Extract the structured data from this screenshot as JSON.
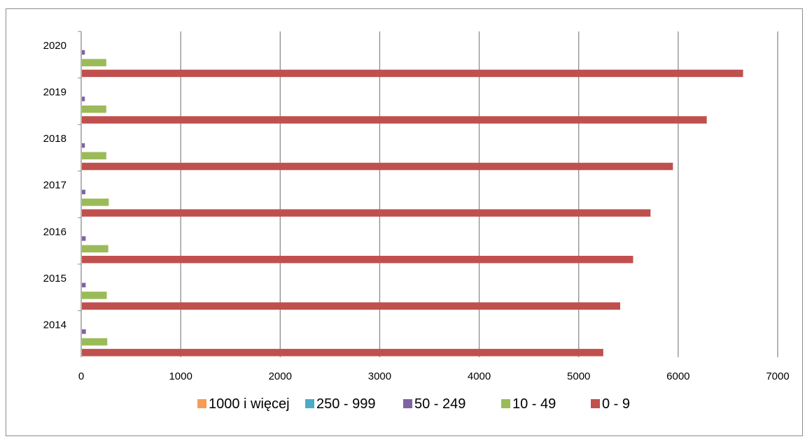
{
  "chart_data": {
    "type": "bar",
    "orientation": "horizontal",
    "categories": [
      "2014",
      "2015",
      "2016",
      "2017",
      "2018",
      "2019",
      "2020"
    ],
    "series": [
      {
        "name": "1000 i więcej",
        "color": "#f59d56",
        "values": [
          0,
          0,
          0,
          0,
          0,
          0,
          0
        ]
      },
      {
        "name": "250 - 999",
        "color": "#4bacc6",
        "values": [
          0,
          0,
          0,
          0,
          0,
          0,
          0
        ]
      },
      {
        "name": "50 - 249",
        "color": "#8064a2",
        "values": [
          40,
          38,
          38,
          35,
          30,
          30,
          30
        ]
      },
      {
        "name": "10 - 49",
        "color": "#9bbb59",
        "values": [
          255,
          250,
          265,
          270,
          245,
          245,
          245
        ]
      },
      {
        "name": "0 - 9",
        "color": "#c0504d",
        "values": [
          5240,
          5410,
          5540,
          5715,
          5940,
          6280,
          6645
        ]
      }
    ],
    "xlim": [
      0,
      7000
    ],
    "x_ticks": [
      "0",
      "1000",
      "2000",
      "3000",
      "4000",
      "5000",
      "6000",
      "7000"
    ],
    "grid": true,
    "legend_position": "bottom"
  }
}
